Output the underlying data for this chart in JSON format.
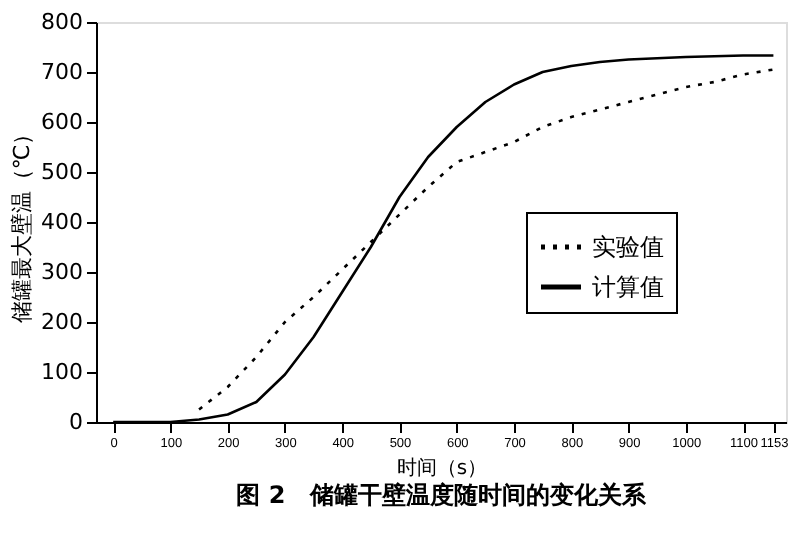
{
  "chart_data": {
    "type": "line",
    "title": "图 2　储罐干壁温度随时间的变化关系",
    "xlabel": "时间（s）",
    "ylabel": "储罐最大壁温（℃）",
    "xlim": [
      -30,
      1175
    ],
    "xticks": [
      0,
      100,
      200,
      300,
      400,
      500,
      600,
      700,
      800,
      900,
      1000,
      1100,
      1153
    ],
    "ylim": [
      0,
      800
    ],
    "yticks": [
      0,
      100,
      200,
      300,
      400,
      500,
      600,
      700,
      800
    ],
    "series": [
      {
        "name": "实验值",
        "color": "#000000",
        "line_style": "dotted",
        "x": [
          150,
          200,
          250,
          300,
          350,
          400,
          450,
          500,
          550,
          600,
          650,
          700,
          750,
          800,
          850,
          900,
          950,
          1000,
          1050,
          1100,
          1153
        ],
        "values": [
          25,
          70,
          130,
          200,
          250,
          305,
          360,
          415,
          470,
          520,
          540,
          560,
          590,
          610,
          625,
          640,
          655,
          670,
          680,
          695,
          705
        ]
      },
      {
        "name": "计算值",
        "color": "#000000",
        "line_style": "solid",
        "x": [
          0,
          100,
          150,
          200,
          250,
          300,
          350,
          400,
          450,
          500,
          550,
          600,
          650,
          700,
          750,
          800,
          850,
          900,
          1000,
          1100,
          1153
        ],
        "values": [
          0,
          0,
          5,
          15,
          40,
          95,
          170,
          260,
          350,
          450,
          530,
          590,
          640,
          675,
          700,
          712,
          720,
          725,
          730,
          733,
          733
        ]
      }
    ],
    "legend": "right",
    "grid": false
  }
}
